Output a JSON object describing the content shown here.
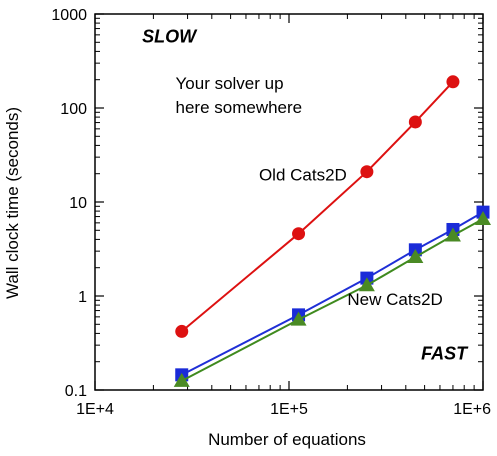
{
  "chart_data": {
    "type": "scatter",
    "x_scale": "log",
    "y_scale": "log",
    "xlim": [
      10000,
      1000000
    ],
    "ylim": [
      0.1,
      1000
    ],
    "xlabel": "Number of equations",
    "ylabel": "Wall clock time (seconds)",
    "x_ticks": [
      {
        "value": 10000,
        "label": "1E+4"
      },
      {
        "value": 100000,
        "label": "1E+5"
      },
      {
        "value": 1000000,
        "label": "1E+6"
      }
    ],
    "y_ticks": [
      {
        "value": 0.1,
        "label": "0.1"
      },
      {
        "value": 1,
        "label": "1"
      },
      {
        "value": 10,
        "label": "10"
      },
      {
        "value": 100,
        "label": "100"
      },
      {
        "value": 1000,
        "label": "1000"
      }
    ],
    "grid": false,
    "series": [
      {
        "color": "#dd1111",
        "marker": "circle",
        "x": [
          28000,
          112000,
          252000,
          448000,
          700000
        ],
        "y": [
          0.42,
          4.6,
          21,
          71,
          190
        ]
      },
      {
        "color": "#1f2fd6",
        "marker_color": "#1a2bd8",
        "marker": "square",
        "x": [
          28000,
          112000,
          252000,
          448000,
          700000,
          1000000
        ],
        "y": [
          0.145,
          0.63,
          1.55,
          3.1,
          5.1,
          7.8
        ]
      },
      {
        "color": "#3f8a1e",
        "marker_color": "#4a8a24",
        "marker": "triangle",
        "x": [
          28000,
          112000,
          252000,
          448000,
          700000,
          1000000
        ],
        "y": [
          0.125,
          0.56,
          1.3,
          2.6,
          4.4,
          6.6
        ]
      }
    ],
    "annotations": [
      {
        "text": "SLOW",
        "style": "bold-italic",
        "at": [
          17500,
          500
        ]
      },
      {
        "text": "Your solver up",
        "at": [
          26000,
          160
        ]
      },
      {
        "text": "here somewhere",
        "at": [
          26000,
          88
        ]
      },
      {
        "text": "Old Cats2D",
        "at": [
          70000,
          17
        ]
      },
      {
        "text": "New Cats2D",
        "at": [
          200000,
          0.8
        ]
      },
      {
        "text": "FAST",
        "style": "bold-italic",
        "at": [
          480000,
          0.21
        ]
      }
    ]
  }
}
